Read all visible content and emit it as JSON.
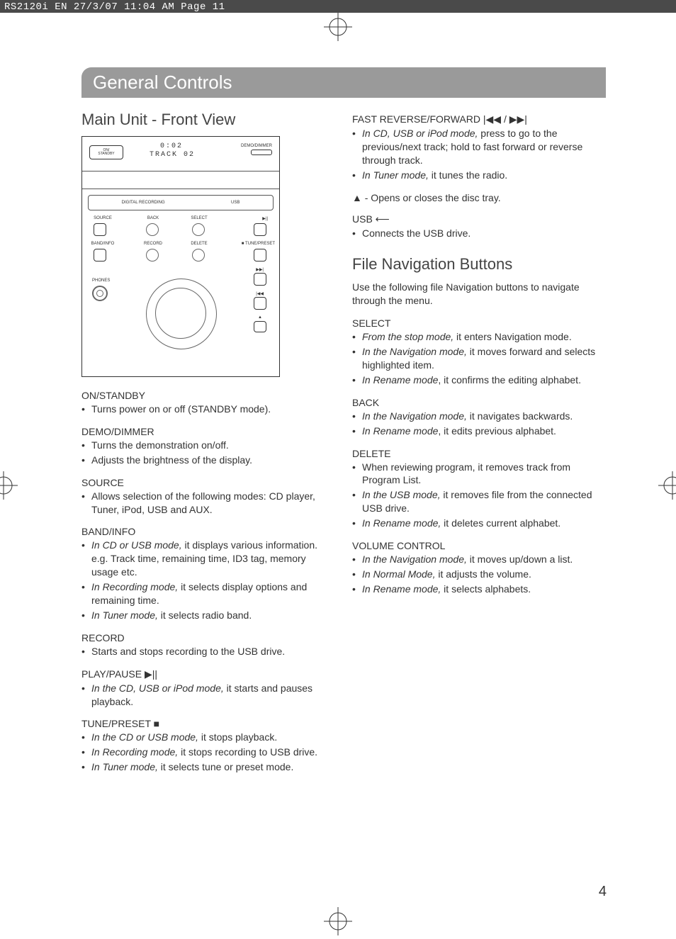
{
  "crop_header": "RS2120i EN  27/3/07  11:04 AM  Page 11",
  "lang_tab": "EN",
  "page_number": "4",
  "title": "General Controls",
  "section_left_title": "Main Unit - Front View",
  "device": {
    "standby_label": "ON/\nSTANDBY",
    "demo_label": "DEMO/DIMMER",
    "display_time": "0:02",
    "display_track": "TRACK  02",
    "strip1": "DIGITAL RECORDING",
    "strip2": "USB",
    "row1": {
      "source": "SOURCE",
      "back": "BACK",
      "select": "SELECT",
      "play": "▶||"
    },
    "row2": {
      "band": "BAND/INFO",
      "record": "RECORD",
      "delete": "DELETE",
      "tune": "■ TUNE/PRESET"
    },
    "phones": "PHONES",
    "row_icons": {
      "ff": "▶▶|",
      "rr": "|◀◀",
      "eject": "▲"
    }
  },
  "left_items": [
    {
      "h": "ON/STANDBY",
      "bullets": [
        {
          "em": "",
          "t": "Turns power on or off (STANDBY mode)."
        }
      ]
    },
    {
      "h": "DEMO/DIMMER",
      "bullets": [
        {
          "em": "",
          "t": "Turns the demonstration on/off."
        },
        {
          "em": "",
          "t": "Adjusts the brightness of the display."
        }
      ]
    },
    {
      "h": "SOURCE",
      "bullets": [
        {
          "em": "",
          "t": "Allows selection of the following modes: CD player, Tuner, iPod, USB and AUX."
        }
      ]
    },
    {
      "h": "BAND/INFO",
      "bullets": [
        {
          "em": "In CD or USB mode,",
          "t": " it displays various information. e.g. Track time, remaining time, ID3 tag, memory usage etc."
        },
        {
          "em": "In Recording mode,",
          "t": " it selects display options and remaining time."
        },
        {
          "em": "In Tuner mode,",
          "t": " it selects radio band."
        }
      ]
    },
    {
      "h": "RECORD",
      "bullets": [
        {
          "em": "",
          "t": "Starts and stops recording to the USB drive."
        }
      ]
    },
    {
      "h": "PLAY/PAUSE  ▶||",
      "bullets": [
        {
          "em": "In the CD, USB or iPod mode,",
          "t": " it starts and pauses playback."
        }
      ]
    },
    {
      "h": "TUNE/PRESET  ■",
      "bullets": [
        {
          "em": "In the CD or USB mode,",
          "t": " it stops playback."
        },
        {
          "em": "In Recording mode,",
          "t": " it stops recording to USB drive."
        },
        {
          "em": "In Tuner mode,",
          "t": " it selects tune or preset mode."
        }
      ]
    }
  ],
  "right_top": {
    "h": "FAST REVERSE/FORWARD  |◀◀ / ▶▶|",
    "bullets": [
      {
        "em": "In CD, USB or iPod mode,",
        "t": " press to go to the previous/next track; hold to fast forward or reverse through track."
      },
      {
        "em": "In Tuner mode,",
        "t": " it tunes the radio."
      }
    ],
    "eject_line": "▲  - Opens or closes the disc tray.",
    "usb_h": "USB  ⟵",
    "usb_bullets": [
      {
        "em": "",
        "t": "Connects the USB drive."
      }
    ]
  },
  "file_nav_title": "File Navigation Buttons",
  "file_nav_intro": "Use the following file Navigation buttons to navigate through the menu.",
  "right_items": [
    {
      "h": "SELECT",
      "bullets": [
        {
          "em": "From the stop mode,",
          "t": " it enters Navigation mode."
        },
        {
          "em": "In the Navigation mode,",
          "t": " it moves forward and selects highlighted item."
        },
        {
          "em": "In Rename mode",
          "t": ", it confirms the editing alphabet."
        }
      ]
    },
    {
      "h": "BACK",
      "bullets": [
        {
          "em": "In the Navigation mode,",
          "t": " it navigates backwards."
        },
        {
          "em": "In Rename mode",
          "t": ", it edits previous alphabet."
        }
      ]
    },
    {
      "h": "DELETE",
      "bullets": [
        {
          "em": "",
          "t": "When reviewing program, it removes track from Program List."
        },
        {
          "em": "In the USB mode,",
          "t": " it removes file from the connected USB drive."
        },
        {
          "em": "In Rename mode,",
          "t": " it deletes current alphabet."
        }
      ]
    },
    {
      "h": "VOLUME CONTROL",
      "bullets": [
        {
          "em": "In the Navigation mode,",
          "t": " it moves up/down a list."
        },
        {
          "em": "In Normal Mode,",
          "t": " it adjusts the volume."
        },
        {
          "em": "In Rename mode,",
          "t": " it selects alphabets."
        }
      ]
    }
  ]
}
